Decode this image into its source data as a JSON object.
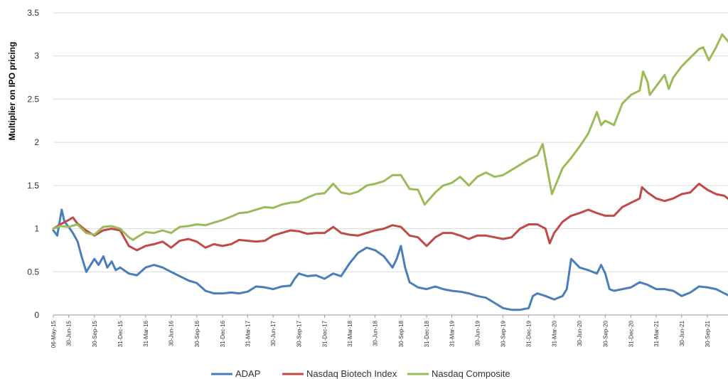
{
  "chart_data": {
    "type": "line",
    "ylabel": "Multiplier on IPO pricing",
    "ylim": [
      0,
      3.5
    ],
    "yticks": [
      "0",
      "0.5",
      "1",
      "1.5",
      "2",
      "2.5",
      "3",
      "3.5"
    ],
    "grid": "horizontal",
    "legend": "bottom",
    "x_ticks": [
      "06-May-15",
      "30-Jun-15",
      "30-Sep-15",
      "31-Dec-15",
      "31-Mar-16",
      "30-Jun-16",
      "30-Sep-16",
      "31-Dec-16",
      "31-Mar-17",
      "30-Jun-17",
      "30-Sep-17",
      "31-Dec-17",
      "31-Mar-18",
      "30-Jun-18",
      "30-Sep-18",
      "31-Dec-18",
      "31-Mar-19",
      "30-Jun-19",
      "30-Sep-19",
      "31-Dec-19",
      "31-Mar-20",
      "30-Jun-20",
      "30-Sep-20",
      "31-Dec-20",
      "31-Mar-21",
      "30-Jun-21",
      "30-Sep-21"
    ],
    "series": [
      {
        "name": "ADAP",
        "color": "#4a7ebb",
        "points": [
          [
            "06-May-15",
            0.98
          ],
          [
            "20-May-15",
            0.92
          ],
          [
            "05-Jun-15",
            1.22
          ],
          [
            "15-Jun-15",
            1.08
          ],
          [
            "30-Jun-15",
            1.02
          ],
          [
            "15-Jul-15",
            0.95
          ],
          [
            "01-Aug-15",
            0.85
          ],
          [
            "15-Aug-15",
            0.68
          ],
          [
            "01-Sep-15",
            0.5
          ],
          [
            "30-Sep-15",
            0.65
          ],
          [
            "15-Oct-15",
            0.58
          ],
          [
            "01-Nov-15",
            0.68
          ],
          [
            "15-Nov-15",
            0.55
          ],
          [
            "01-Dec-15",
            0.62
          ],
          [
            "15-Dec-15",
            0.52
          ],
          [
            "31-Dec-15",
            0.55
          ],
          [
            "31-Jan-16",
            0.48
          ],
          [
            "29-Feb-16",
            0.46
          ],
          [
            "31-Mar-16",
            0.55
          ],
          [
            "30-Apr-16",
            0.58
          ],
          [
            "31-May-16",
            0.55
          ],
          [
            "30-Jun-16",
            0.5
          ],
          [
            "31-Jul-16",
            0.45
          ],
          [
            "31-Aug-16",
            0.4
          ],
          [
            "30-Sep-16",
            0.37
          ],
          [
            "31-Oct-16",
            0.28
          ],
          [
            "30-Nov-16",
            0.25
          ],
          [
            "31-Dec-16",
            0.25
          ],
          [
            "31-Jan-17",
            0.26
          ],
          [
            "28-Feb-17",
            0.25
          ],
          [
            "31-Mar-17",
            0.27
          ],
          [
            "30-Apr-17",
            0.33
          ],
          [
            "31-May-17",
            0.32
          ],
          [
            "30-Jun-17",
            0.3
          ],
          [
            "31-Jul-17",
            0.33
          ],
          [
            "31-Aug-17",
            0.34
          ],
          [
            "15-Sep-17",
            0.42
          ],
          [
            "30-Sep-17",
            0.48
          ],
          [
            "31-Oct-17",
            0.45
          ],
          [
            "30-Nov-17",
            0.46
          ],
          [
            "31-Dec-17",
            0.42
          ],
          [
            "31-Jan-18",
            0.48
          ],
          [
            "28-Feb-18",
            0.45
          ],
          [
            "31-Mar-18",
            0.6
          ],
          [
            "30-Apr-18",
            0.72
          ],
          [
            "31-May-18",
            0.78
          ],
          [
            "30-Jun-18",
            0.75
          ],
          [
            "31-Jul-18",
            0.68
          ],
          [
            "31-Aug-18",
            0.55
          ],
          [
            "15-Sep-18",
            0.65
          ],
          [
            "30-Sep-18",
            0.8
          ],
          [
            "15-Oct-18",
            0.55
          ],
          [
            "31-Oct-18",
            0.38
          ],
          [
            "30-Nov-18",
            0.32
          ],
          [
            "31-Dec-18",
            0.3
          ],
          [
            "31-Jan-19",
            0.33
          ],
          [
            "28-Feb-19",
            0.3
          ],
          [
            "31-Mar-19",
            0.28
          ],
          [
            "30-Apr-19",
            0.27
          ],
          [
            "31-May-19",
            0.25
          ],
          [
            "30-Jun-19",
            0.22
          ],
          [
            "31-Jul-19",
            0.2
          ],
          [
            "31-Aug-19",
            0.14
          ],
          [
            "30-Sep-19",
            0.08
          ],
          [
            "31-Oct-19",
            0.06
          ],
          [
            "30-Nov-19",
            0.06
          ],
          [
            "31-Dec-19",
            0.08
          ],
          [
            "15-Jan-20",
            0.22
          ],
          [
            "31-Jan-20",
            0.25
          ],
          [
            "29-Feb-20",
            0.22
          ],
          [
            "31-Mar-20",
            0.18
          ],
          [
            "30-Apr-20",
            0.22
          ],
          [
            "15-May-20",
            0.3
          ],
          [
            "31-May-20",
            0.65
          ],
          [
            "30-Jun-20",
            0.55
          ],
          [
            "31-Jul-20",
            0.52
          ],
          [
            "31-Aug-20",
            0.48
          ],
          [
            "15-Sep-20",
            0.58
          ],
          [
            "30-Sep-20",
            0.48
          ],
          [
            "15-Oct-20",
            0.3
          ],
          [
            "31-Oct-20",
            0.28
          ],
          [
            "30-Nov-20",
            0.3
          ],
          [
            "31-Dec-20",
            0.32
          ],
          [
            "31-Jan-21",
            0.38
          ],
          [
            "28-Feb-21",
            0.35
          ],
          [
            "31-Mar-21",
            0.3
          ],
          [
            "30-Apr-21",
            0.3
          ],
          [
            "31-May-21",
            0.28
          ],
          [
            "30-Jun-21",
            0.22
          ],
          [
            "31-Jul-21",
            0.26
          ],
          [
            "31-Aug-21",
            0.33
          ],
          [
            "30-Sep-21",
            0.32
          ],
          [
            "31-Oct-21",
            0.3
          ],
          [
            "30-Nov-21",
            0.25
          ],
          [
            "31-Dec-21",
            0.2
          ]
        ]
      },
      {
        "name": "Nasdaq Biotech Index",
        "color": "#be4b48",
        "points": [
          [
            "06-May-15",
            1.0
          ],
          [
            "31-May-15",
            1.05
          ],
          [
            "30-Jun-15",
            1.1
          ],
          [
            "15-Jul-15",
            1.13
          ],
          [
            "31-Jul-15",
            1.06
          ],
          [
            "31-Aug-15",
            0.98
          ],
          [
            "30-Sep-15",
            0.92
          ],
          [
            "31-Oct-15",
            0.98
          ],
          [
            "30-Nov-15",
            1.0
          ],
          [
            "31-Dec-15",
            0.98
          ],
          [
            "31-Jan-16",
            0.8
          ],
          [
            "29-Feb-16",
            0.75
          ],
          [
            "31-Mar-16",
            0.8
          ],
          [
            "30-Apr-16",
            0.82
          ],
          [
            "31-May-16",
            0.85
          ],
          [
            "30-Jun-16",
            0.78
          ],
          [
            "31-Jul-16",
            0.86
          ],
          [
            "31-Aug-16",
            0.88
          ],
          [
            "30-Sep-16",
            0.85
          ],
          [
            "31-Oct-16",
            0.78
          ],
          [
            "30-Nov-16",
            0.82
          ],
          [
            "31-Dec-16",
            0.8
          ],
          [
            "31-Jan-17",
            0.82
          ],
          [
            "28-Feb-17",
            0.87
          ],
          [
            "31-Mar-17",
            0.86
          ],
          [
            "30-Apr-17",
            0.85
          ],
          [
            "31-May-17",
            0.86
          ],
          [
            "30-Jun-17",
            0.92
          ],
          [
            "31-Jul-17",
            0.95
          ],
          [
            "31-Aug-17",
            0.98
          ],
          [
            "30-Sep-17",
            0.97
          ],
          [
            "31-Oct-17",
            0.94
          ],
          [
            "30-Nov-17",
            0.95
          ],
          [
            "31-Dec-17",
            0.95
          ],
          [
            "31-Jan-18",
            1.02
          ],
          [
            "28-Feb-18",
            0.95
          ],
          [
            "31-Mar-18",
            0.93
          ],
          [
            "30-Apr-18",
            0.92
          ],
          [
            "31-May-18",
            0.95
          ],
          [
            "30-Jun-18",
            0.98
          ],
          [
            "31-Jul-18",
            1.0
          ],
          [
            "31-Aug-18",
            1.04
          ],
          [
            "30-Sep-18",
            1.02
          ],
          [
            "31-Oct-18",
            0.92
          ],
          [
            "30-Nov-18",
            0.9
          ],
          [
            "31-Dec-18",
            0.8
          ],
          [
            "31-Jan-19",
            0.9
          ],
          [
            "28-Feb-19",
            0.95
          ],
          [
            "31-Mar-19",
            0.95
          ],
          [
            "30-Apr-19",
            0.92
          ],
          [
            "31-May-19",
            0.88
          ],
          [
            "30-Jun-19",
            0.92
          ],
          [
            "31-Jul-19",
            0.92
          ],
          [
            "31-Aug-19",
            0.9
          ],
          [
            "30-Sep-19",
            0.88
          ],
          [
            "31-Oct-19",
            0.9
          ],
          [
            "30-Nov-19",
            1.0
          ],
          [
            "31-Dec-19",
            1.05
          ],
          [
            "31-Jan-20",
            1.05
          ],
          [
            "29-Feb-20",
            1.0
          ],
          [
            "15-Mar-20",
            0.83
          ],
          [
            "31-Mar-20",
            0.95
          ],
          [
            "30-Apr-20",
            1.08
          ],
          [
            "31-May-20",
            1.15
          ],
          [
            "30-Jun-20",
            1.18
          ],
          [
            "31-Jul-20",
            1.22
          ],
          [
            "31-Aug-20",
            1.18
          ],
          [
            "30-Sep-20",
            1.15
          ],
          [
            "31-Oct-20",
            1.15
          ],
          [
            "30-Nov-20",
            1.25
          ],
          [
            "31-Dec-20",
            1.3
          ],
          [
            "31-Jan-21",
            1.35
          ],
          [
            "08-Feb-21",
            1.48
          ],
          [
            "28-Feb-21",
            1.42
          ],
          [
            "31-Mar-21",
            1.35
          ],
          [
            "30-Apr-21",
            1.32
          ],
          [
            "31-May-21",
            1.35
          ],
          [
            "30-Jun-21",
            1.4
          ],
          [
            "31-Jul-21",
            1.42
          ],
          [
            "31-Aug-21",
            1.52
          ],
          [
            "30-Sep-21",
            1.45
          ],
          [
            "31-Oct-21",
            1.4
          ],
          [
            "30-Nov-21",
            1.38
          ],
          [
            "31-Dec-21",
            1.3
          ]
        ]
      },
      {
        "name": "Nasdaq Composite",
        "color": "#9bbb59",
        "points": [
          [
            "06-May-15",
            1.0
          ],
          [
            "31-May-15",
            1.03
          ],
          [
            "30-Jun-15",
            1.02
          ],
          [
            "31-Jul-15",
            1.05
          ],
          [
            "31-Aug-15",
            0.95
          ],
          [
            "30-Sep-15",
            0.93
          ],
          [
            "31-Oct-15",
            1.02
          ],
          [
            "30-Nov-15",
            1.03
          ],
          [
            "31-Dec-15",
            1.0
          ],
          [
            "31-Jan-16",
            0.9
          ],
          [
            "15-Feb-16",
            0.87
          ],
          [
            "29-Feb-16",
            0.9
          ],
          [
            "31-Mar-16",
            0.96
          ],
          [
            "30-Apr-16",
            0.95
          ],
          [
            "31-May-16",
            0.98
          ],
          [
            "30-Jun-16",
            0.95
          ],
          [
            "31-Jul-16",
            1.02
          ],
          [
            "31-Aug-16",
            1.03
          ],
          [
            "30-Sep-16",
            1.05
          ],
          [
            "31-Oct-16",
            1.04
          ],
          [
            "30-Nov-16",
            1.07
          ],
          [
            "31-Dec-16",
            1.1
          ],
          [
            "31-Jan-17",
            1.14
          ],
          [
            "28-Feb-17",
            1.18
          ],
          [
            "31-Mar-17",
            1.19
          ],
          [
            "30-Apr-17",
            1.22
          ],
          [
            "31-May-17",
            1.25
          ],
          [
            "30-Jun-17",
            1.24
          ],
          [
            "31-Jul-17",
            1.28
          ],
          [
            "31-Aug-17",
            1.3
          ],
          [
            "30-Sep-17",
            1.31
          ],
          [
            "31-Oct-17",
            1.36
          ],
          [
            "30-Nov-17",
            1.4
          ],
          [
            "31-Dec-17",
            1.41
          ],
          [
            "31-Jan-18",
            1.52
          ],
          [
            "28-Feb-18",
            1.42
          ],
          [
            "31-Mar-18",
            1.4
          ],
          [
            "30-Apr-18",
            1.43
          ],
          [
            "31-May-18",
            1.5
          ],
          [
            "30-Jun-18",
            1.52
          ],
          [
            "31-Jul-18",
            1.55
          ],
          [
            "31-Aug-18",
            1.62
          ],
          [
            "30-Sep-18",
            1.62
          ],
          [
            "31-Oct-18",
            1.46
          ],
          [
            "30-Nov-18",
            1.45
          ],
          [
            "24-Dec-18",
            1.28
          ],
          [
            "31-Jan-19",
            1.42
          ],
          [
            "28-Feb-19",
            1.5
          ],
          [
            "31-Mar-19",
            1.53
          ],
          [
            "30-Apr-19",
            1.6
          ],
          [
            "31-May-19",
            1.5
          ],
          [
            "30-Jun-19",
            1.6
          ],
          [
            "31-Jul-19",
            1.65
          ],
          [
            "31-Aug-19",
            1.6
          ],
          [
            "30-Sep-19",
            1.62
          ],
          [
            "31-Oct-19",
            1.68
          ],
          [
            "30-Nov-19",
            1.74
          ],
          [
            "31-Dec-19",
            1.8
          ],
          [
            "31-Jan-20",
            1.85
          ],
          [
            "19-Feb-20",
            1.98
          ],
          [
            "23-Mar-20",
            1.4
          ],
          [
            "30-Apr-20",
            1.7
          ],
          [
            "31-May-20",
            1.82
          ],
          [
            "30-Jun-20",
            1.95
          ],
          [
            "31-Jul-20",
            2.1
          ],
          [
            "31-Aug-20",
            2.35
          ],
          [
            "15-Sep-20",
            2.2
          ],
          [
            "30-Sep-20",
            2.25
          ],
          [
            "31-Oct-20",
            2.2
          ],
          [
            "30-Nov-20",
            2.45
          ],
          [
            "31-Dec-20",
            2.55
          ],
          [
            "31-Jan-21",
            2.6
          ],
          [
            "12-Feb-21",
            2.82
          ],
          [
            "28-Feb-21",
            2.7
          ],
          [
            "08-Mar-21",
            2.55
          ],
          [
            "31-Mar-21",
            2.65
          ],
          [
            "30-Apr-21",
            2.78
          ],
          [
            "15-May-21",
            2.62
          ],
          [
            "31-May-21",
            2.75
          ],
          [
            "30-Jun-21",
            2.88
          ],
          [
            "31-Jul-21",
            2.98
          ],
          [
            "31-Aug-21",
            3.08
          ],
          [
            "15-Sep-21",
            3.1
          ],
          [
            "05-Oct-21",
            2.95
          ],
          [
            "31-Oct-21",
            3.1
          ],
          [
            "22-Nov-21",
            3.25
          ],
          [
            "31-Dec-21",
            3.1
          ]
        ]
      }
    ]
  }
}
